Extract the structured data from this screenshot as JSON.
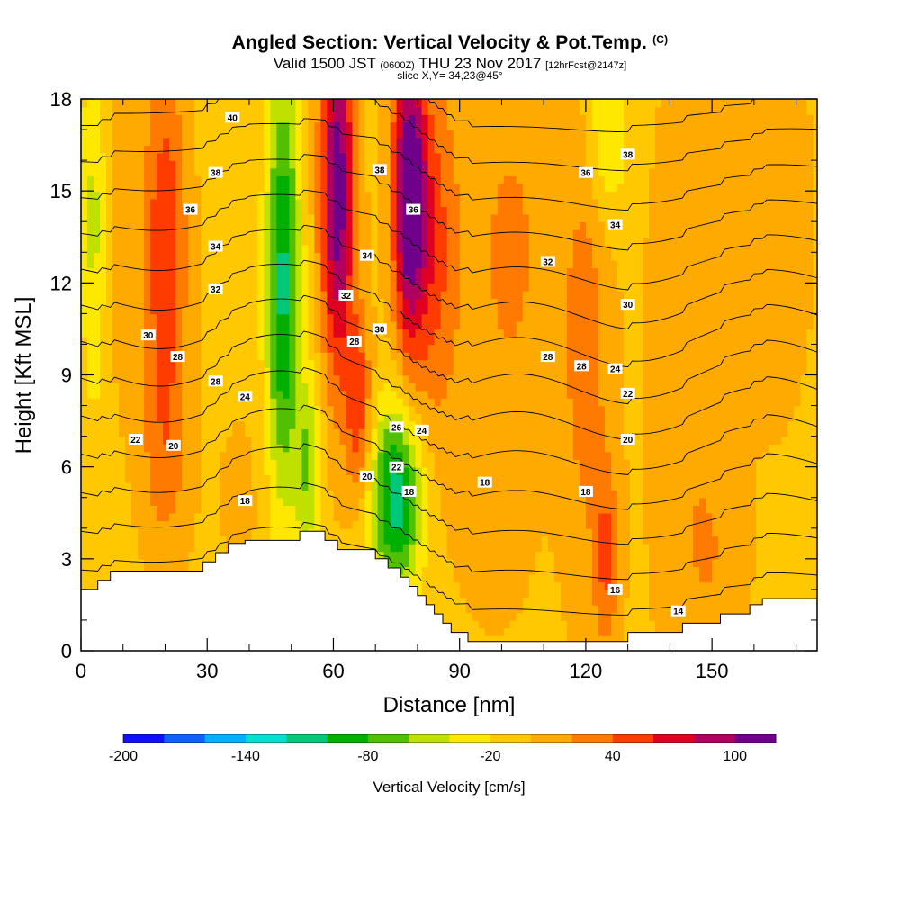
{
  "title": {
    "main": "Angled Section: Vertical Velocity & Pot.Temp.",
    "main_unit": "(C)",
    "valid_prefix": "Valid 1500 JST",
    "valid_utc": "(0600Z)",
    "valid_date": "THU 23 Nov 2017",
    "forecast": "[12hrFcst@2147z]",
    "slice": "slice X,Y= 34,23@45°"
  },
  "chart_data": {
    "type": "heatmap",
    "xlabel": "Distance [nm]",
    "ylabel": "Height [Kft MSL]",
    "xlim": [
      0,
      175
    ],
    "ylim": [
      0,
      18
    ],
    "x_ticks": [
      "0",
      "30",
      "60",
      "90",
      "120",
      "150"
    ],
    "x_tick_values": [
      0,
      30,
      60,
      90,
      120,
      150
    ],
    "y_ticks": [
      "0",
      "3",
      "6",
      "9",
      "12",
      "15",
      "18"
    ],
    "y_tick_values": [
      0,
      3,
      6,
      9,
      12,
      15,
      18
    ],
    "colorbar": {
      "label": "Vertical Velocity [cm/s]",
      "tick_labels": [
        "-200",
        "-140",
        "-80",
        "-20",
        "40",
        "100"
      ],
      "tick_values": [
        -200,
        -140,
        -80,
        -20,
        40,
        100
      ],
      "min": -200,
      "max": 120,
      "step": 20,
      "colors": [
        "#1010ff",
        "#1060ff",
        "#00b0ff",
        "#00e0d0",
        "#00c878",
        "#00b000",
        "#50c000",
        "#c0e000",
        "#ffe800",
        "#ffc800",
        "#ffaa00",
        "#ff7a00",
        "#ff3c00",
        "#e00020",
        "#b00060",
        "#70008c"
      ]
    },
    "velocity_field": {
      "background": -5,
      "features": [
        {
          "x": 3,
          "y": 14,
          "sx": 3,
          "sy": 6,
          "v": -45
        },
        {
          "x": 10,
          "y": 15,
          "sx": 4,
          "sy": 6,
          "v": 15
        },
        {
          "x": 20,
          "y": 13,
          "sx": 5,
          "sy": 6,
          "v": 60
        },
        {
          "x": 20,
          "y": 6,
          "sx": 6,
          "sy": 3,
          "v": 20
        },
        {
          "x": 48,
          "y": 12,
          "sx": 4,
          "sy": 7,
          "v": -105
        },
        {
          "x": 54,
          "y": 6,
          "sx": 3,
          "sy": 3,
          "v": -60
        },
        {
          "x": 61,
          "y": 15,
          "sx": 4,
          "sy": 6,
          "v": 115
        },
        {
          "x": 66,
          "y": 8,
          "sx": 3,
          "sy": 3,
          "v": 55
        },
        {
          "x": 78,
          "y": 15,
          "sx": 4,
          "sy": 5,
          "v": 120
        },
        {
          "x": 84,
          "y": 13,
          "sx": 6,
          "sy": 6,
          "v": 45
        },
        {
          "x": 75,
          "y": 5,
          "sx": 6,
          "sy": 3,
          "v": -115
        },
        {
          "x": 102,
          "y": 13,
          "sx": 10,
          "sy": 6,
          "v": 25
        },
        {
          "x": 120,
          "y": 10,
          "sx": 6,
          "sy": 8,
          "v": 30
        },
        {
          "x": 125,
          "y": 17,
          "sx": 5,
          "sy": 3,
          "v": -45
        },
        {
          "x": 125,
          "y": 3,
          "sx": 3,
          "sy": 3,
          "v": 40
        },
        {
          "x": 145,
          "y": 9,
          "sx": 10,
          "sy": 10,
          "v": 15
        },
        {
          "x": 165,
          "y": 14,
          "sx": 8,
          "sy": 6,
          "v": 15
        },
        {
          "x": 98,
          "y": 4,
          "sx": 10,
          "sy": 4,
          "v": 5
        },
        {
          "x": 150,
          "y": 3,
          "sx": 8,
          "sy": 3,
          "v": 10
        },
        {
          "x": 38,
          "y": 5,
          "sx": 6,
          "sy": 3,
          "v": 5
        }
      ]
    },
    "terrain": [
      [
        0,
        2.0
      ],
      [
        4,
        2.0
      ],
      [
        4,
        2.3
      ],
      [
        7,
        2.3
      ],
      [
        7,
        2.6
      ],
      [
        29,
        2.6
      ],
      [
        29,
        2.9
      ],
      [
        32,
        2.9
      ],
      [
        32,
        3.2
      ],
      [
        35,
        3.2
      ],
      [
        35,
        3.5
      ],
      [
        39,
        3.5
      ],
      [
        39,
        3.6
      ],
      [
        52,
        3.6
      ],
      [
        52,
        3.9
      ],
      [
        58,
        3.9
      ],
      [
        58,
        3.6
      ],
      [
        61,
        3.6
      ],
      [
        61,
        3.3
      ],
      [
        70,
        3.3
      ],
      [
        70,
        3.0
      ],
      [
        73,
        3.0
      ],
      [
        73,
        2.7
      ],
      [
        76,
        2.7
      ],
      [
        76,
        2.4
      ],
      [
        78,
        2.4
      ],
      [
        78,
        2.1
      ],
      [
        80,
        2.1
      ],
      [
        80,
        1.8
      ],
      [
        82,
        1.8
      ],
      [
        82,
        1.5
      ],
      [
        84,
        1.5
      ],
      [
        84,
        1.2
      ],
      [
        86,
        1.2
      ],
      [
        86,
        0.9
      ],
      [
        88,
        0.9
      ],
      [
        88,
        0.6
      ],
      [
        92,
        0.6
      ],
      [
        92,
        0.3
      ],
      [
        130,
        0.3
      ],
      [
        130,
        0.6
      ],
      [
        143,
        0.6
      ],
      [
        143,
        0.9
      ],
      [
        152,
        0.9
      ],
      [
        152,
        1.2
      ],
      [
        159,
        1.2
      ],
      [
        159,
        1.5
      ],
      [
        162,
        1.5
      ],
      [
        162,
        1.7
      ],
      [
        175,
        1.7
      ]
    ],
    "theta_contours": [
      14,
      16,
      18,
      20,
      22,
      24,
      26,
      28,
      30,
      32,
      34,
      36,
      38,
      40
    ],
    "contour_labels": [
      {
        "text": "40",
        "x": 36,
        "y": 17.4
      },
      {
        "text": "38",
        "x": 32,
        "y": 15.6
      },
      {
        "text": "36",
        "x": 26,
        "y": 14.4
      },
      {
        "text": "34",
        "x": 32,
        "y": 13.2
      },
      {
        "text": "32",
        "x": 32,
        "y": 11.8
      },
      {
        "text": "30",
        "x": 16,
        "y": 10.3
      },
      {
        "text": "28",
        "x": 23,
        "y": 9.6
      },
      {
        "text": "28",
        "x": 32,
        "y": 8.8
      },
      {
        "text": "24",
        "x": 39,
        "y": 8.3
      },
      {
        "text": "22",
        "x": 13,
        "y": 6.9
      },
      {
        "text": "20",
        "x": 22,
        "y": 6.7
      },
      {
        "text": "18",
        "x": 39,
        "y": 4.9
      },
      {
        "text": "38",
        "x": 71,
        "y": 15.7
      },
      {
        "text": "36",
        "x": 79,
        "y": 14.4
      },
      {
        "text": "34",
        "x": 68,
        "y": 12.9
      },
      {
        "text": "32",
        "x": 63,
        "y": 11.6
      },
      {
        "text": "30",
        "x": 71,
        "y": 10.5
      },
      {
        "text": "28",
        "x": 65,
        "y": 10.1
      },
      {
        "text": "26",
        "x": 75,
        "y": 7.3
      },
      {
        "text": "24",
        "x": 81,
        "y": 7.2
      },
      {
        "text": "22",
        "x": 75,
        "y": 6.0
      },
      {
        "text": "20",
        "x": 68,
        "y": 5.7
      },
      {
        "text": "18",
        "x": 78,
        "y": 5.2
      },
      {
        "text": "18",
        "x": 96,
        "y": 5.5
      },
      {
        "text": "36",
        "x": 120,
        "y": 15.6
      },
      {
        "text": "38",
        "x": 130,
        "y": 16.2
      },
      {
        "text": "34",
        "x": 127,
        "y": 13.9
      },
      {
        "text": "32",
        "x": 111,
        "y": 12.7
      },
      {
        "text": "30",
        "x": 130,
        "y": 11.3
      },
      {
        "text": "28",
        "x": 111,
        "y": 9.6
      },
      {
        "text": "28",
        "x": 119,
        "y": 9.3
      },
      {
        "text": "24",
        "x": 127,
        "y": 9.2
      },
      {
        "text": "22",
        "x": 130,
        "y": 8.4
      },
      {
        "text": "20",
        "x": 130,
        "y": 6.9
      },
      {
        "text": "18",
        "x": 120,
        "y": 5.2
      },
      {
        "text": "16",
        "x": 127,
        "y": 2.0
      },
      {
        "text": "14",
        "x": 142,
        "y": 1.3
      }
    ]
  }
}
